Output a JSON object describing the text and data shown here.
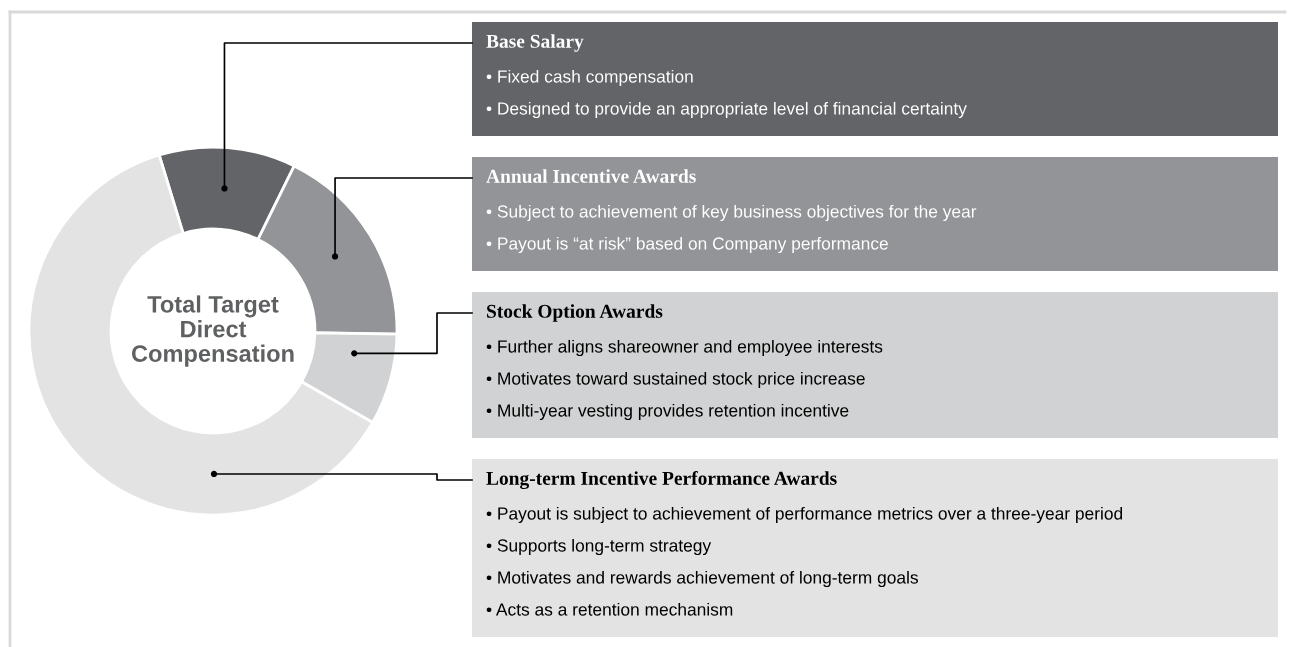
{
  "chart_data": {
    "type": "donut",
    "title": "Total Target\nDirect\nCompensation",
    "categories": [
      "Base Salary",
      "Annual Incentive Awards",
      "Stock Option Awards",
      "Long-term Incentive Performance Awards"
    ],
    "values": [
      12,
      18,
      8,
      62
    ],
    "colors": [
      "#636467",
      "#939497",
      "#d1d2d3",
      "#e3e3e4"
    ],
    "annotations": [
      "• Fixed cash compensation\n• Designed to provide an appropriate level of financial certainty",
      "• Subject to achievement of key business objectives for the year\n• Payout is “at risk” based on Company performance",
      "• Further aligns shareowner and employee interests\n• Motivates toward sustained stock price increase\n• Multi-year vesting provides retention incentive",
      "• Payout is subject to achievement of performance metrics over a three-year period\n• Supports long-term strategy\n• Motivates and rewards achievement of long-term goals\n• Acts as a retention mechanism"
    ]
  }
}
